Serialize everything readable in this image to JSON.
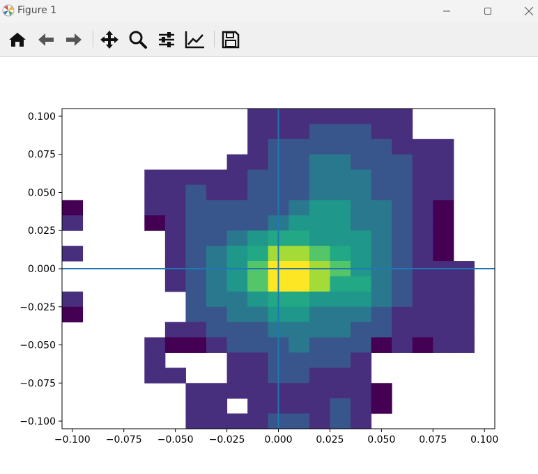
{
  "window": {
    "title": "Figure 1",
    "controls": [
      "minimize",
      "maximize",
      "close"
    ]
  },
  "toolbar": {
    "buttons": [
      {
        "name": "home",
        "icon": "home-icon"
      },
      {
        "name": "back",
        "icon": "arrow-left-icon"
      },
      {
        "name": "forward",
        "icon": "arrow-right-icon"
      },
      {
        "name": "pan",
        "icon": "move-icon"
      },
      {
        "name": "zoom",
        "icon": "magnifier-icon"
      },
      {
        "name": "subplots",
        "icon": "sliders-icon"
      },
      {
        "name": "customize",
        "icon": "line-chart-icon"
      },
      {
        "name": "save",
        "icon": "floppy-disk-icon"
      }
    ]
  },
  "chart_data": {
    "type": "heatmap",
    "title": "",
    "xlabel": "",
    "ylabel": "",
    "xlim": [
      -0.105,
      0.105
    ],
    "ylim": [
      -0.105,
      0.105
    ],
    "xticks": [
      "−0.100",
      "−0.075",
      "−0.050",
      "−0.025",
      "0.000",
      "0.025",
      "0.050",
      "0.075",
      "0.100"
    ],
    "xtick_values": [
      -0.1,
      -0.075,
      -0.05,
      -0.025,
      0,
      0.025,
      0.05,
      0.075,
      0.1
    ],
    "yticks": [
      "0.100",
      "0.075",
      "0.050",
      "0.025",
      "0.000",
      "−0.025",
      "−0.050",
      "−0.075",
      "−0.100"
    ],
    "ytick_values": [
      0.1,
      0.075,
      0.05,
      0.025,
      0,
      -0.025,
      -0.05,
      -0.075,
      -0.1
    ],
    "colormap": "viridis",
    "bin_width": 0.01,
    "bins_origin": [
      -0.105,
      -0.105
    ],
    "grid": false,
    "reference_lines": [
      {
        "orientation": "vertical",
        "value": 0.0,
        "color": "#1f77b4"
      },
      {
        "orientation": "horizontal",
        "value": 0.0,
        "color": "#1f77b4"
      }
    ],
    "counts_rows_top_to_bottom": [
      [
        0,
        0,
        0,
        0,
        0,
        0,
        0,
        0,
        0,
        2,
        2,
        2,
        2,
        2,
        2,
        2,
        2,
        0,
        0,
        0,
        0
      ],
      [
        0,
        0,
        0,
        0,
        0,
        0,
        0,
        0,
        0,
        2,
        2,
        2,
        3,
        3,
        3,
        2,
        2,
        0,
        0,
        0,
        0
      ],
      [
        0,
        0,
        0,
        0,
        0,
        0,
        0,
        0,
        0,
        2,
        3,
        3,
        3,
        3,
        3,
        3,
        2,
        2,
        2,
        0,
        0
      ],
      [
        0,
        0,
        0,
        0,
        0,
        0,
        0,
        0,
        2,
        2,
        3,
        3,
        4,
        4,
        3,
        3,
        3,
        2,
        2,
        0,
        0
      ],
      [
        0,
        0,
        0,
        0,
        2,
        2,
        2,
        2,
        2,
        3,
        3,
        3,
        4,
        4,
        4,
        3,
        3,
        2,
        2,
        0,
        0
      ],
      [
        0,
        0,
        0,
        0,
        2,
        2,
        3,
        2,
        2,
        3,
        3,
        3,
        4,
        4,
        4,
        3,
        3,
        2,
        2,
        0,
        0
      ],
      [
        1,
        0,
        0,
        0,
        2,
        2,
        3,
        3,
        3,
        3,
        3,
        4,
        5,
        5,
        4,
        4,
        3,
        2,
        1,
        0,
        0
      ],
      [
        2,
        0,
        0,
        0,
        1,
        2,
        3,
        3,
        3,
        3,
        4,
        5,
        5,
        5,
        4,
        4,
        3,
        2,
        1,
        0,
        0
      ],
      [
        0,
        0,
        0,
        0,
        0,
        2,
        3,
        3,
        4,
        5,
        6,
        6,
        5,
        5,
        5,
        4,
        3,
        2,
        1,
        0,
        0
      ],
      [
        2,
        0,
        0,
        0,
        0,
        2,
        3,
        4,
        5,
        6,
        8,
        8,
        7,
        6,
        5,
        4,
        3,
        2,
        1,
        0,
        0
      ],
      [
        0,
        0,
        0,
        0,
        0,
        2,
        3,
        4,
        5,
        7,
        9,
        9,
        8,
        7,
        5,
        4,
        3,
        2,
        2,
        2,
        0
      ],
      [
        0,
        0,
        0,
        0,
        0,
        2,
        3,
        4,
        5,
        7,
        9,
        9,
        8,
        6,
        6,
        4,
        3,
        2,
        2,
        2,
        0
      ],
      [
        2,
        0,
        0,
        0,
        0,
        0,
        3,
        4,
        4,
        5,
        6,
        6,
        5,
        5,
        5,
        4,
        3,
        2,
        2,
        2,
        0
      ],
      [
        1,
        0,
        0,
        0,
        0,
        0,
        3,
        3,
        4,
        4,
        5,
        5,
        4,
        4,
        4,
        3,
        2,
        2,
        2,
        2,
        0
      ],
      [
        0,
        0,
        0,
        0,
        0,
        2,
        2,
        3,
        3,
        3,
        4,
        4,
        4,
        4,
        3,
        3,
        2,
        2,
        2,
        2,
        0
      ],
      [
        0,
        0,
        0,
        0,
        2,
        1,
        1,
        2,
        3,
        3,
        3,
        4,
        3,
        3,
        3,
        1,
        2,
        1,
        2,
        2,
        0
      ],
      [
        0,
        0,
        0,
        0,
        2,
        0,
        0,
        0,
        2,
        2,
        3,
        3,
        3,
        3,
        2,
        0,
        0,
        0,
        0,
        0,
        0
      ],
      [
        0,
        0,
        0,
        0,
        2,
        2,
        0,
        0,
        2,
        2,
        3,
        3,
        2,
        2,
        2,
        0,
        0,
        0,
        0,
        0,
        0
      ],
      [
        0,
        0,
        0,
        0,
        0,
        0,
        2,
        2,
        2,
        2,
        2,
        2,
        2,
        2,
        2,
        1,
        0,
        0,
        0,
        0,
        0
      ],
      [
        0,
        0,
        0,
        0,
        0,
        0,
        2,
        2,
        0,
        2,
        2,
        2,
        2,
        3,
        2,
        1,
        0,
        0,
        0,
        0,
        0
      ],
      [
        0,
        0,
        0,
        0,
        0,
        0,
        2,
        2,
        2,
        2,
        3,
        3,
        2,
        3,
        2,
        0,
        0,
        0,
        0,
        0,
        0
      ]
    ]
  }
}
